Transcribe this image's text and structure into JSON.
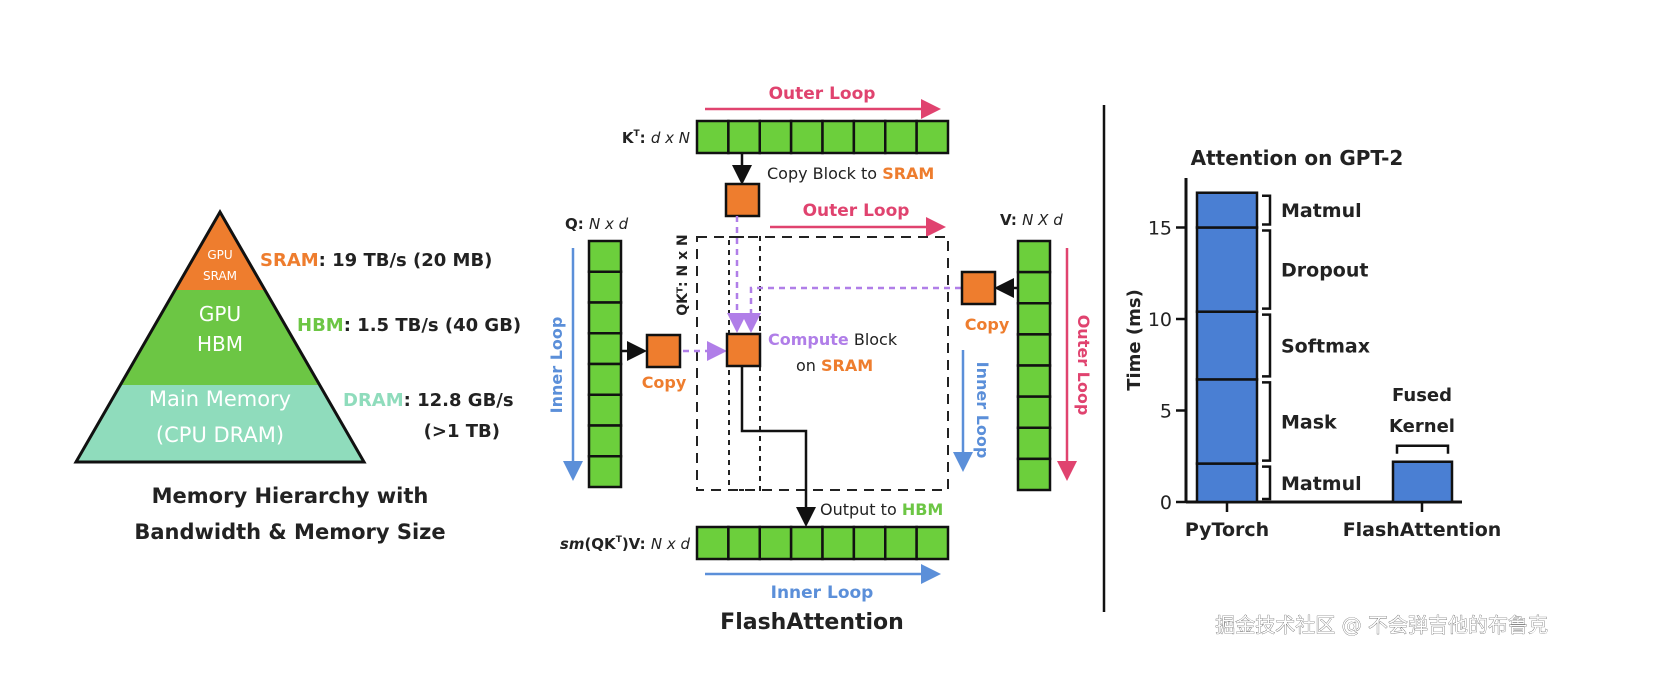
{
  "colors": {
    "sram": "#ee7d2e",
    "hbm": "#6cc644",
    "dram": "#8fdcbc",
    "block_green": "#6ccf3c",
    "outer_loop": "#e0436f",
    "inner_loop": "#5b8fd9",
    "compute": "#b07ee8",
    "bar": "#4a7fd3"
  },
  "memory_hierarchy": {
    "tiers": [
      {
        "line1": "GPU",
        "line2": "SRAM",
        "name": "SRAM",
        "spec": ": 19 TB/s (20 MB)"
      },
      {
        "line1": "GPU",
        "line2": "HBM",
        "name": "HBM",
        "spec": ": 1.5 TB/s (40 GB)"
      },
      {
        "line1": "Main Memory",
        "line2": "(CPU DRAM)",
        "name": "DRAM",
        "spec": ": 12.8 GB/s",
        "spec2": "(>1 TB)"
      }
    ],
    "caption_line1": "Memory Hierarchy with",
    "caption_line2": "Bandwidth & Memory Size"
  },
  "flash": {
    "kt_label_a": "K",
    "kt_sup": "T",
    "kt_label_b": ": ",
    "kt_dims": "d x N",
    "q_label": "Q: ",
    "q_dims": "N x d",
    "v_label": "V: ",
    "v_dims": "N X d",
    "qkt_label": "QKᵀ: N x N",
    "out_label_sm": "sm",
    "out_label_a": "(QK",
    "out_label_sup": "T",
    "out_label_b": ")V: ",
    "out_dims": "N x d",
    "outer_loop": "Outer Loop",
    "inner_loop": "Inner Loop",
    "copy_block_a": "Copy Block to ",
    "copy_block_b": "SRAM",
    "copy": "Copy",
    "compute_a": "Compute",
    "compute_b": " Block",
    "on_a": "on ",
    "on_b": "SRAM",
    "output_a": "Output to ",
    "output_b": "HBM",
    "caption": "FlashAttention"
  },
  "chart_data": {
    "type": "bar",
    "stacked": true,
    "title": "Attention on GPT-2",
    "ylabel": "Time (ms)",
    "ylim": [
      0,
      17.5
    ],
    "yticks": [
      0,
      5,
      10,
      15
    ],
    "categories": [
      "PyTorch",
      "FlashAttention"
    ],
    "segments": [
      {
        "category": "PyTorch",
        "label": "Matmul",
        "value": 2.1
      },
      {
        "category": "PyTorch",
        "label": "Mask",
        "value": 4.6
      },
      {
        "category": "PyTorch",
        "label": "Softmax",
        "value": 3.7
      },
      {
        "category": "PyTorch",
        "label": "Dropout",
        "value": 4.6
      },
      {
        "category": "PyTorch",
        "label": "Matmul",
        "value": 1.9
      },
      {
        "category": "FlashAttention",
        "label": "Fused Kernel",
        "value": 2.2
      }
    ],
    "fused_line1": "Fused",
    "fused_line2": "Kernel"
  },
  "watermark": "掘金技术社区 @ 不会弹吉他的布鲁克"
}
